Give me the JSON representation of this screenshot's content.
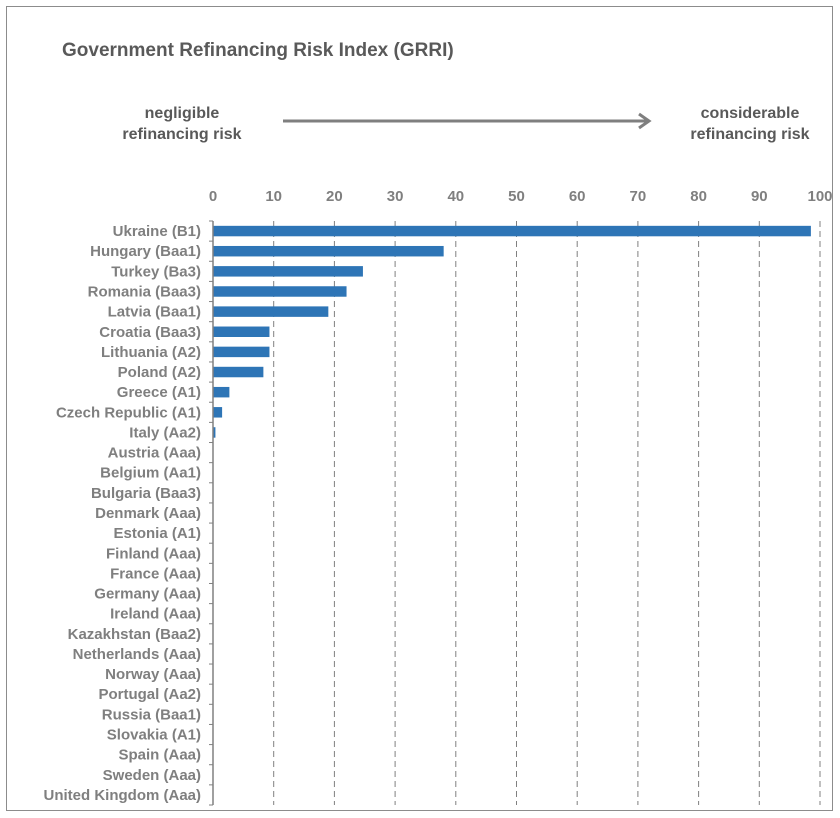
{
  "chart_data": {
    "type": "bar",
    "orientation": "horizontal",
    "title": "Government Refinancing Risk Index (GRRI)",
    "annotation_left": "negligible\nrefinancing risk",
    "annotation_right": "considerable\nrefinancing risk",
    "categories": [
      "Ukraine (B1)",
      "Hungary (Baa1)",
      "Turkey (Ba3)",
      "Romania (Baa3)",
      "Latvia (Baa1)",
      "Croatia (Baa3)",
      "Lithuania (A2)",
      "Poland (A2)",
      "Greece (A1)",
      "Czech Republic (A1)",
      "Italy (Aa2)",
      "Austria (Aaa)",
      "Belgium (Aa1)",
      "Bulgaria (Baa3)",
      "Denmark (Aaa)",
      "Estonia (A1)",
      "Finland (Aaa)",
      "France (Aaa)",
      "Germany (Aaa)",
      "Ireland (Aaa)",
      "Kazakhstan (Baa2)",
      "Netherlands (Aaa)",
      "Norway (Aaa)",
      "Portugal (Aa2)",
      "Russia (Baa1)",
      "Slovakia (A1)",
      "Spain (Aaa)",
      "Sweden (Aaa)",
      "United Kingdom (Aaa)"
    ],
    "values": [
      98.5,
      38,
      24.7,
      22,
      19,
      9.3,
      9.3,
      8.3,
      2.7,
      1.5,
      0.4,
      0,
      0,
      0,
      0,
      0,
      0,
      0,
      0,
      0,
      0,
      0,
      0,
      0,
      0,
      0,
      0,
      0,
      0
    ],
    "xlim": [
      0,
      100
    ],
    "xticks": [
      0,
      10,
      20,
      30,
      40,
      50,
      60,
      70,
      80,
      90,
      100
    ],
    "grid": "vertical dashed",
    "bar_color": "#2e75b6",
    "axis_position": "top",
    "legend": "none"
  }
}
